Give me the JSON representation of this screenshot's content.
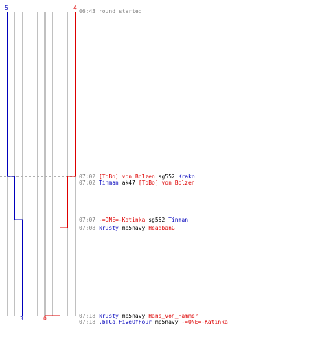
{
  "colors": {
    "red_team": "#dd0000",
    "blue_team": "#0000bb",
    "grid": "#c0c0c0",
    "center_line": "#808080",
    "dashed": "#b0b0b0",
    "time_text": "#808080"
  },
  "graph": {
    "start_labels": {
      "blue": "5",
      "red": "4"
    },
    "end_labels": {
      "blue": "3",
      "red": "0"
    }
  },
  "events": [
    {
      "time": "06:43",
      "parts": [
        {
          "text": "round started",
          "team": "neutral"
        }
      ]
    },
    {
      "time": "07:02",
      "parts": [
        {
          "text": "[ToBo] von Bolzen",
          "team": "red"
        },
        {
          "text": "sg552",
          "team": "weapon"
        },
        {
          "text": "Krako",
          "team": "blue"
        }
      ]
    },
    {
      "time": "07:02",
      "parts": [
        {
          "text": "Tinman",
          "team": "blue"
        },
        {
          "text": "ak47",
          "team": "weapon"
        },
        {
          "text": "[ToBo] von Bolzen",
          "team": "red"
        }
      ]
    },
    {
      "time": "07:07",
      "parts": [
        {
          "text": "-=ONE=-Katinka",
          "team": "red"
        },
        {
          "text": "sg552",
          "team": "weapon"
        },
        {
          "text": "Tinman",
          "team": "blue"
        }
      ]
    },
    {
      "time": "07:08",
      "parts": [
        {
          "text": "krusty",
          "team": "blue"
        },
        {
          "text": "mp5navy",
          "team": "weapon"
        },
        {
          "text": "HeadbanG",
          "team": "red"
        }
      ]
    },
    {
      "time": "07:18",
      "parts": [
        {
          "text": "krusty",
          "team": "blue"
        },
        {
          "text": "mp5navy",
          "team": "weapon"
        },
        {
          "text": "Hans_von_Hammer",
          "team": "red"
        }
      ]
    },
    {
      "time": "07:18",
      "parts": [
        {
          "text": ".bTCa.FiveOfFour",
          "team": "blue"
        },
        {
          "text": "mp5navy",
          "team": "weapon"
        },
        {
          "text": "-=ONE=-Katinka",
          "team": "red"
        }
      ]
    }
  ]
}
